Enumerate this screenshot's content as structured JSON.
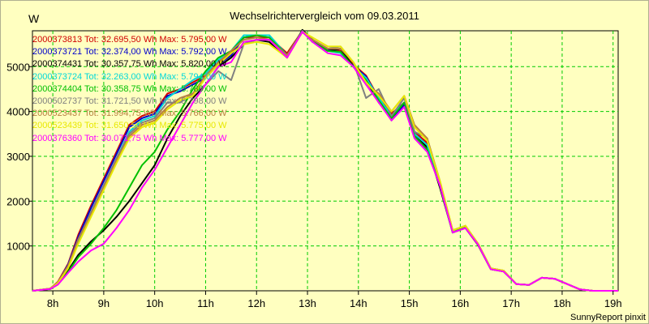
{
  "header": {
    "unit": "W"
  },
  "footer": {
    "text": "SunnyReport pinxit"
  },
  "chart_data": {
    "type": "line",
    "title": "Wechselrichtervergleich vom 09.03.2011",
    "ylabel": "W",
    "xlabel": "",
    "xlim": [
      7.6,
      19.1
    ],
    "ylim": [
      0,
      5800
    ],
    "x_ticks": [
      8,
      9,
      10,
      11,
      12,
      13,
      14,
      15,
      16,
      17,
      18,
      19
    ],
    "x_tick_labels": [
      "8h",
      "9h",
      "10h",
      "11h",
      "12h",
      "13h",
      "14h",
      "15h",
      "16h",
      "17h",
      "18h",
      "19h"
    ],
    "y_ticks": [
      1000,
      2000,
      3000,
      4000,
      5000
    ],
    "y_tick_labels": [
      "1000",
      "2000",
      "3000",
      "4000",
      "5000"
    ],
    "grid": true,
    "legend_position": "top-left",
    "x": [
      7.6,
      7.95,
      8.1,
      8.3,
      8.5,
      8.75,
      9.0,
      9.25,
      9.5,
      9.75,
      10.0,
      10.25,
      10.5,
      10.75,
      11.0,
      11.25,
      11.5,
      11.75,
      12.0,
      12.25,
      12.6,
      12.9,
      13.1,
      13.4,
      13.65,
      13.9,
      14.15,
      14.4,
      14.65,
      14.9,
      15.1,
      15.35,
      15.6,
      15.85,
      16.1,
      16.35,
      16.6,
      16.85,
      17.1,
      17.35,
      17.6,
      17.85,
      18.1,
      18.35,
      18.6,
      18.85,
      19.1
    ],
    "series": [
      {
        "name": "2000373813 Tot: 32.695,50 Wh Max: 5.795,00 W",
        "color": "#d00000",
        "values": [
          0,
          50,
          200,
          600,
          1250,
          1900,
          2500,
          3100,
          3700,
          3900,
          4000,
          4400,
          4500,
          4650,
          4800,
          5100,
          5300,
          5650,
          5650,
          5650,
          5300,
          5800,
          5600,
          5400,
          5350,
          5050,
          4800,
          4300,
          3950,
          4200,
          3550,
          3300,
          2400,
          1350,
          1450,
          1050,
          500,
          450,
          150,
          130,
          290,
          270,
          150,
          30,
          0,
          0,
          0
        ]
      },
      {
        "name": "2000373721 Tot: 32.374,00 Wh Max: 5.792,00 W",
        "color": "#0000cc",
        "values": [
          0,
          45,
          180,
          580,
          1200,
          1850,
          2450,
          3050,
          3650,
          3850,
          3950,
          4350,
          4450,
          4600,
          4750,
          5050,
          5250,
          5650,
          5700,
          5700,
          5250,
          5790,
          5550,
          5380,
          5320,
          5020,
          4780,
          4280,
          3800,
          4150,
          3500,
          3250,
          2350,
          1300,
          1430,
          1040,
          500,
          440,
          150,
          130,
          290,
          270,
          150,
          30,
          0,
          0,
          0
        ]
      },
      {
        "name": "2000374431 Tot: 30.357,75 Wh Max: 5.820,00 W",
        "color": "#000000",
        "values": [
          0,
          40,
          150,
          450,
          800,
          1100,
          1350,
          1650,
          2000,
          2400,
          2800,
          3400,
          3900,
          4300,
          4600,
          5000,
          5200,
          5500,
          5600,
          5550,
          5200,
          5820,
          5600,
          5350,
          5400,
          5000,
          4700,
          4200,
          3850,
          4200,
          3500,
          3200,
          2300,
          1300,
          1400,
          1020,
          480,
          430,
          150,
          130,
          290,
          270,
          150,
          30,
          0,
          0,
          0
        ]
      },
      {
        "name": "2000373724 Tot: 32.263,00 Wh Max: 5.794,00 W",
        "color": "#00d8d8",
        "values": [
          0,
          45,
          170,
          520,
          1100,
          1750,
          2350,
          2950,
          3550,
          3800,
          3900,
          4300,
          4500,
          4700,
          4850,
          5150,
          5350,
          5700,
          5700,
          5700,
          5250,
          5794,
          5550,
          5350,
          5300,
          5000,
          4750,
          4300,
          3900,
          4200,
          3500,
          3250,
          2350,
          1300,
          1430,
          1040,
          490,
          440,
          150,
          130,
          290,
          270,
          150,
          30,
          0,
          0,
          0
        ]
      },
      {
        "name": "2000374404 Tot: 30.358,75 Wh Max: 5.780,00 W",
        "color": "#00c000",
        "values": [
          0,
          40,
          140,
          420,
          750,
          1050,
          1400,
          1800,
          2300,
          2800,
          3100,
          3600,
          4000,
          4500,
          4900,
          5200,
          5350,
          5650,
          5700,
          5650,
          5250,
          5780,
          5550,
          5350,
          5330,
          5000,
          4700,
          4250,
          3850,
          4200,
          3450,
          3150,
          2350,
          1300,
          1420,
          1030,
          480,
          440,
          150,
          130,
          290,
          270,
          150,
          30,
          0,
          0,
          0
        ]
      },
      {
        "name": "2000502737 Tot: 31.721,50 Wh Max: 5.798,00 W",
        "color": "#808080",
        "values": [
          0,
          50,
          190,
          560,
          1150,
          1750,
          2350,
          2950,
          3500,
          3750,
          3850,
          4200,
          4200,
          4400,
          4600,
          4900,
          4700,
          5500,
          5600,
          5600,
          5250,
          5798,
          5600,
          5400,
          5450,
          5100,
          4300,
          4500,
          3900,
          4300,
          3550,
          3400,
          2400,
          1350,
          1450,
          1050,
          500,
          450,
          150,
          130,
          290,
          270,
          150,
          30,
          0,
          0,
          0
        ]
      },
      {
        "name": "2000523437 Tot: 31.994,75 Wh Max: 5.766,00 W",
        "color": "#b88040",
        "values": [
          0,
          50,
          190,
          540,
          1150,
          1700,
          2300,
          2900,
          3450,
          3700,
          3800,
          4100,
          4300,
          4400,
          4800,
          5100,
          5350,
          5600,
          5650,
          5600,
          5250,
          5766,
          5600,
          5400,
          5400,
          5100,
          4600,
          4400,
          4000,
          4350,
          3700,
          3400,
          2450,
          1350,
          1450,
          1050,
          500,
          450,
          150,
          130,
          290,
          270,
          150,
          30,
          0,
          0,
          0
        ]
      },
      {
        "name": "2000523439 Tot: 31.650,50 Wh Max: 5.775,00 W",
        "color": "#e8e800",
        "values": [
          0,
          45,
          170,
          500,
          1050,
          1650,
          2250,
          2850,
          3400,
          3650,
          3750,
          4050,
          4250,
          4350,
          4750,
          5050,
          5300,
          5500,
          5550,
          5500,
          5200,
          5775,
          5650,
          5450,
          5450,
          5100,
          4650,
          4350,
          4000,
          4350,
          3650,
          3350,
          2450,
          1350,
          1450,
          1050,
          500,
          450,
          150,
          130,
          290,
          270,
          150,
          30,
          0,
          0,
          0
        ]
      },
      {
        "name": "2000376360 Tot: 30.071,75 Wh Max: 5.777,00 W",
        "color": "#ff00ff",
        "values": [
          0,
          40,
          140,
          400,
          650,
          900,
          1050,
          1400,
          1800,
          2300,
          2700,
          3200,
          3700,
          4200,
          4600,
          5000,
          5100,
          5550,
          5600,
          5600,
          5200,
          5777,
          5550,
          5300,
          5250,
          5000,
          4600,
          4200,
          3800,
          4100,
          3400,
          3100,
          2350,
          1300,
          1400,
          1030,
          480,
          430,
          150,
          130,
          290,
          270,
          150,
          30,
          0,
          0,
          0
        ]
      }
    ]
  }
}
